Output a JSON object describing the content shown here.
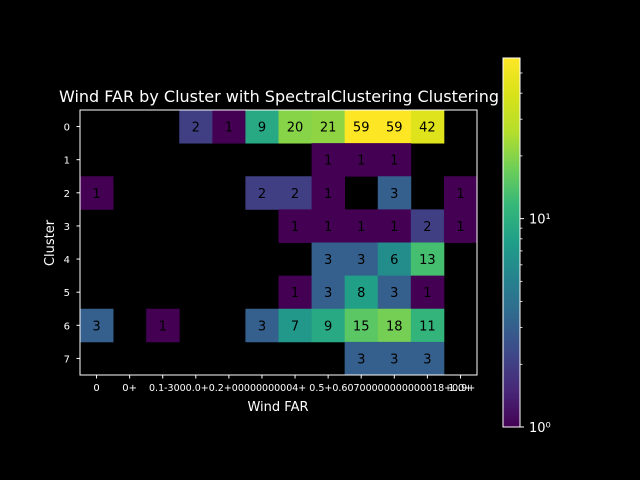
{
  "chart_data": {
    "type": "heatmap",
    "title": "Wind FAR by Cluster with SpectralClustering Clustering",
    "xlabel": "Wind FAR",
    "ylabel": "Cluster",
    "x_tick_labels": [
      "0",
      "0+",
      "0.1-3000.0+",
      "0.2+",
      "0.30000000004+",
      "0.4+",
      "0.5+",
      "0.6+",
      "0.70000000000001+",
      "0.8+",
      "0.9+",
      "1.0+"
    ],
    "x_tick_overlap_text": "0.1-3000.0+0.2+00000000004+ 0.5+0.60700000000000018+0.9+",
    "y_tick_labels": [
      "0",
      "1",
      "2",
      "3",
      "4",
      "5",
      "6",
      "7"
    ],
    "color_scale": "log",
    "colormap": "viridis",
    "vmin": 1,
    "vmax": 59,
    "colorbar_ticks": [
      {
        "value": 1,
        "label": "10⁰"
      },
      {
        "value": 10,
        "label": "10¹"
      }
    ],
    "values": [
      [
        null,
        null,
        null,
        2,
        1,
        9,
        20,
        21,
        59,
        59,
        42,
        null
      ],
      [
        null,
        null,
        null,
        null,
        null,
        null,
        null,
        1,
        1,
        1,
        null,
        null
      ],
      [
        1,
        null,
        null,
        null,
        null,
        2,
        2,
        1,
        null,
        3,
        null,
        1
      ],
      [
        null,
        null,
        null,
        null,
        null,
        null,
        1,
        1,
        1,
        1,
        2,
        1
      ],
      [
        null,
        null,
        null,
        null,
        null,
        null,
        null,
        3,
        3,
        6,
        13,
        null
      ],
      [
        null,
        null,
        null,
        null,
        null,
        null,
        1,
        3,
        8,
        3,
        1,
        null
      ],
      [
        3,
        null,
        1,
        null,
        null,
        3,
        7,
        9,
        15,
        18,
        11,
        null
      ],
      [
        null,
        null,
        null,
        null,
        null,
        null,
        null,
        null,
        3,
        3,
        3,
        null
      ]
    ],
    "grid": false
  }
}
